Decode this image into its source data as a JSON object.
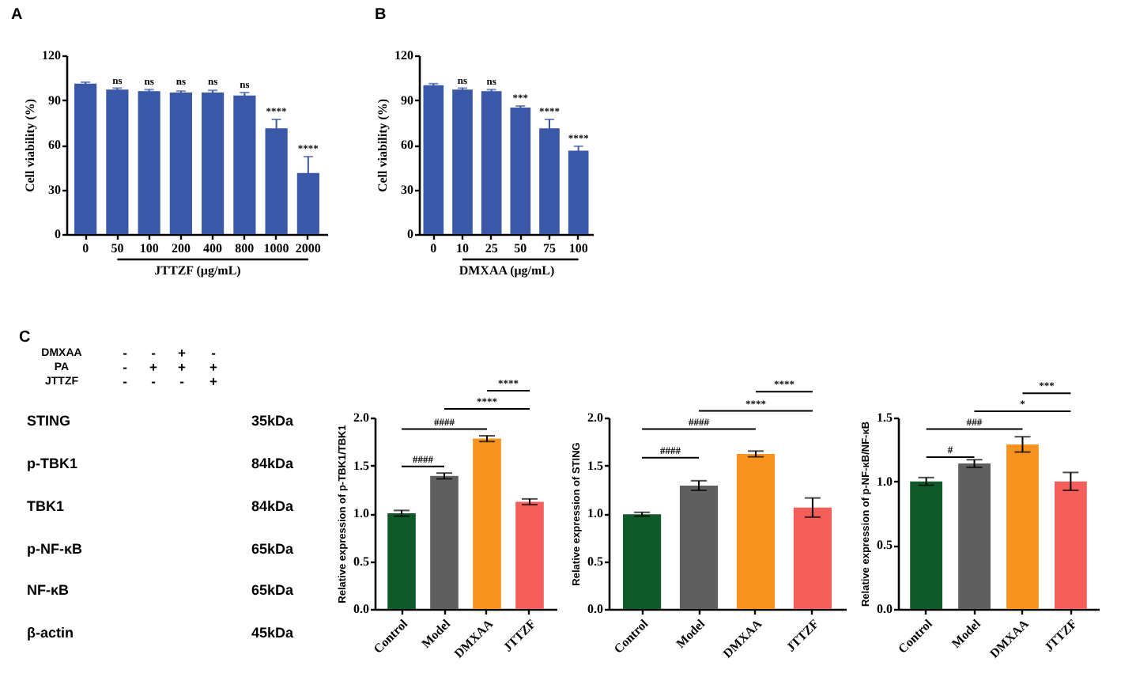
{
  "chart_data": [
    {
      "type": "bar",
      "title": "A",
      "categories": [
        "0",
        "50",
        "100",
        "200",
        "400",
        "800",
        "1000",
        "2000"
      ],
      "values": [
        101,
        97,
        96,
        95,
        95,
        93,
        71,
        41
      ],
      "color": "#3b58a8",
      "errors": [
        1,
        1,
        1,
        1,
        1.5,
        2,
        6,
        11
      ],
      "ylim": [
        0,
        120
      ],
      "yticks": [
        0,
        30,
        60,
        90,
        120
      ],
      "ylabel": "Cell viability (%)",
      "xlabel": "JTTZF (μg/mL)",
      "annotations": [
        {
          "text": "ns",
          "x": "50",
          "y": 99
        },
        {
          "text": "ns",
          "x": "100",
          "y": 98
        },
        {
          "text": "ns",
          "x": "200",
          "y": 98
        },
        {
          "text": "ns",
          "x": "400",
          "y": 98
        },
        {
          "text": "ns",
          "x": "800",
          "y": 96
        },
        {
          "text": "****",
          "x": "1000",
          "y": 78
        },
        {
          "text": "****",
          "x": "2000",
          "y": 53
        }
      ]
    },
    {
      "type": "bar",
      "title": "B",
      "categories": [
        "0",
        "10",
        "25",
        "50",
        "75",
        "100"
      ],
      "values": [
        100,
        97,
        96,
        85,
        71,
        56
      ],
      "color": "#3b58a8",
      "errors": [
        1,
        1,
        1,
        1,
        6,
        3
      ],
      "ylim": [
        0,
        120
      ],
      "yticks": [
        0,
        30,
        60,
        90,
        120
      ],
      "ylabel": "Cell viability (%)",
      "xlabel": "DMXAA (μg/mL)",
      "annotations": [
        {
          "text": "ns",
          "x": "10",
          "y": 99
        },
        {
          "text": "ns",
          "x": "25",
          "y": 98
        },
        {
          "text": "***",
          "x": "50",
          "y": 87
        },
        {
          "text": "****",
          "x": "75",
          "y": 78
        },
        {
          "text": "****",
          "x": "100",
          "y": 60
        }
      ]
    },
    {
      "type": "other",
      "title": "C",
      "annotations": [
        "DMXAA",
        "PA",
        "JTTZF",
        "-",
        "-",
        "+",
        "-",
        "-",
        "+",
        "+",
        "+",
        "-",
        "-",
        "-",
        "+",
        "STING",
        "p-TBK1",
        "TBK1",
        "p-NF-κB",
        "NF-κB",
        "β-actin",
        "35kDa",
        "84kDa",
        "84kDa",
        "65kDa",
        "65kDa",
        "45kDa"
      ]
    },
    {
      "type": "bar",
      "categories": [
        "Control",
        "Model",
        "DMXAA",
        "JTTZF"
      ],
      "values": [
        1.0,
        1.39,
        1.78,
        1.12
      ],
      "colors": [
        "#0f5a2b",
        "#5f5f5f",
        "#f7931e",
        "#f45f5b"
      ],
      "errors": [
        0.03,
        0.03,
        0.03,
        0.03
      ],
      "ylim": [
        0,
        2
      ],
      "yticks": [
        {
          "value": 0,
          "label": "0.0"
        },
        0.5,
        {
          "value": 1,
          "label": "1.0"
        },
        1.5,
        {
          "value": 2,
          "label": "2.0"
        }
      ],
      "ylabel": "Relative expression of p-TBK1/TBK1",
      "annotations": [
        "####",
        "####",
        "****",
        "****"
      ]
    },
    {
      "type": "bar",
      "categories": [
        "Control",
        "Model",
        "DMXAA",
        "JTTZF"
      ],
      "values": [
        0.99,
        1.29,
        1.62,
        1.06
      ],
      "colors": [
        "#0f5a2b",
        "#5f5f5f",
        "#f7931e",
        "#f45f5b"
      ],
      "errors": [
        0.02,
        0.05,
        0.03,
        0.1
      ],
      "ylim": [
        0,
        2
      ],
      "yticks": [
        {
          "value": 0,
          "label": "0.0"
        },
        0.5,
        {
          "value": 1,
          "label": "1.0"
        },
        1.5,
        {
          "value": 2,
          "label": "2.0"
        }
      ],
      "ylabel": "Relative expression of STING",
      "annotations": [
        "####",
        "####",
        "****",
        "****"
      ]
    },
    {
      "type": "bar",
      "categories": [
        "Control",
        "Model",
        "DMXAA",
        "JTTZF"
      ],
      "values": [
        1.0,
        1.14,
        1.29,
        1.0
      ],
      "colors": [
        "#0f5a2b",
        "#5f5f5f",
        "#f7931e",
        "#f45f5b"
      ],
      "errors": [
        0.03,
        0.03,
        0.06,
        0.07
      ],
      "ylim": [
        0,
        1.5
      ],
      "yticks": [
        {
          "value": 0,
          "label": "0.0"
        },
        0.5,
        {
          "value": 1,
          "label": "1.0"
        },
        1.5
      ],
      "ylabel": "Relative expression of p-NF-κB/NF-κB",
      "annotations": [
        "#",
        "###",
        "*",
        "***"
      ]
    }
  ]
}
